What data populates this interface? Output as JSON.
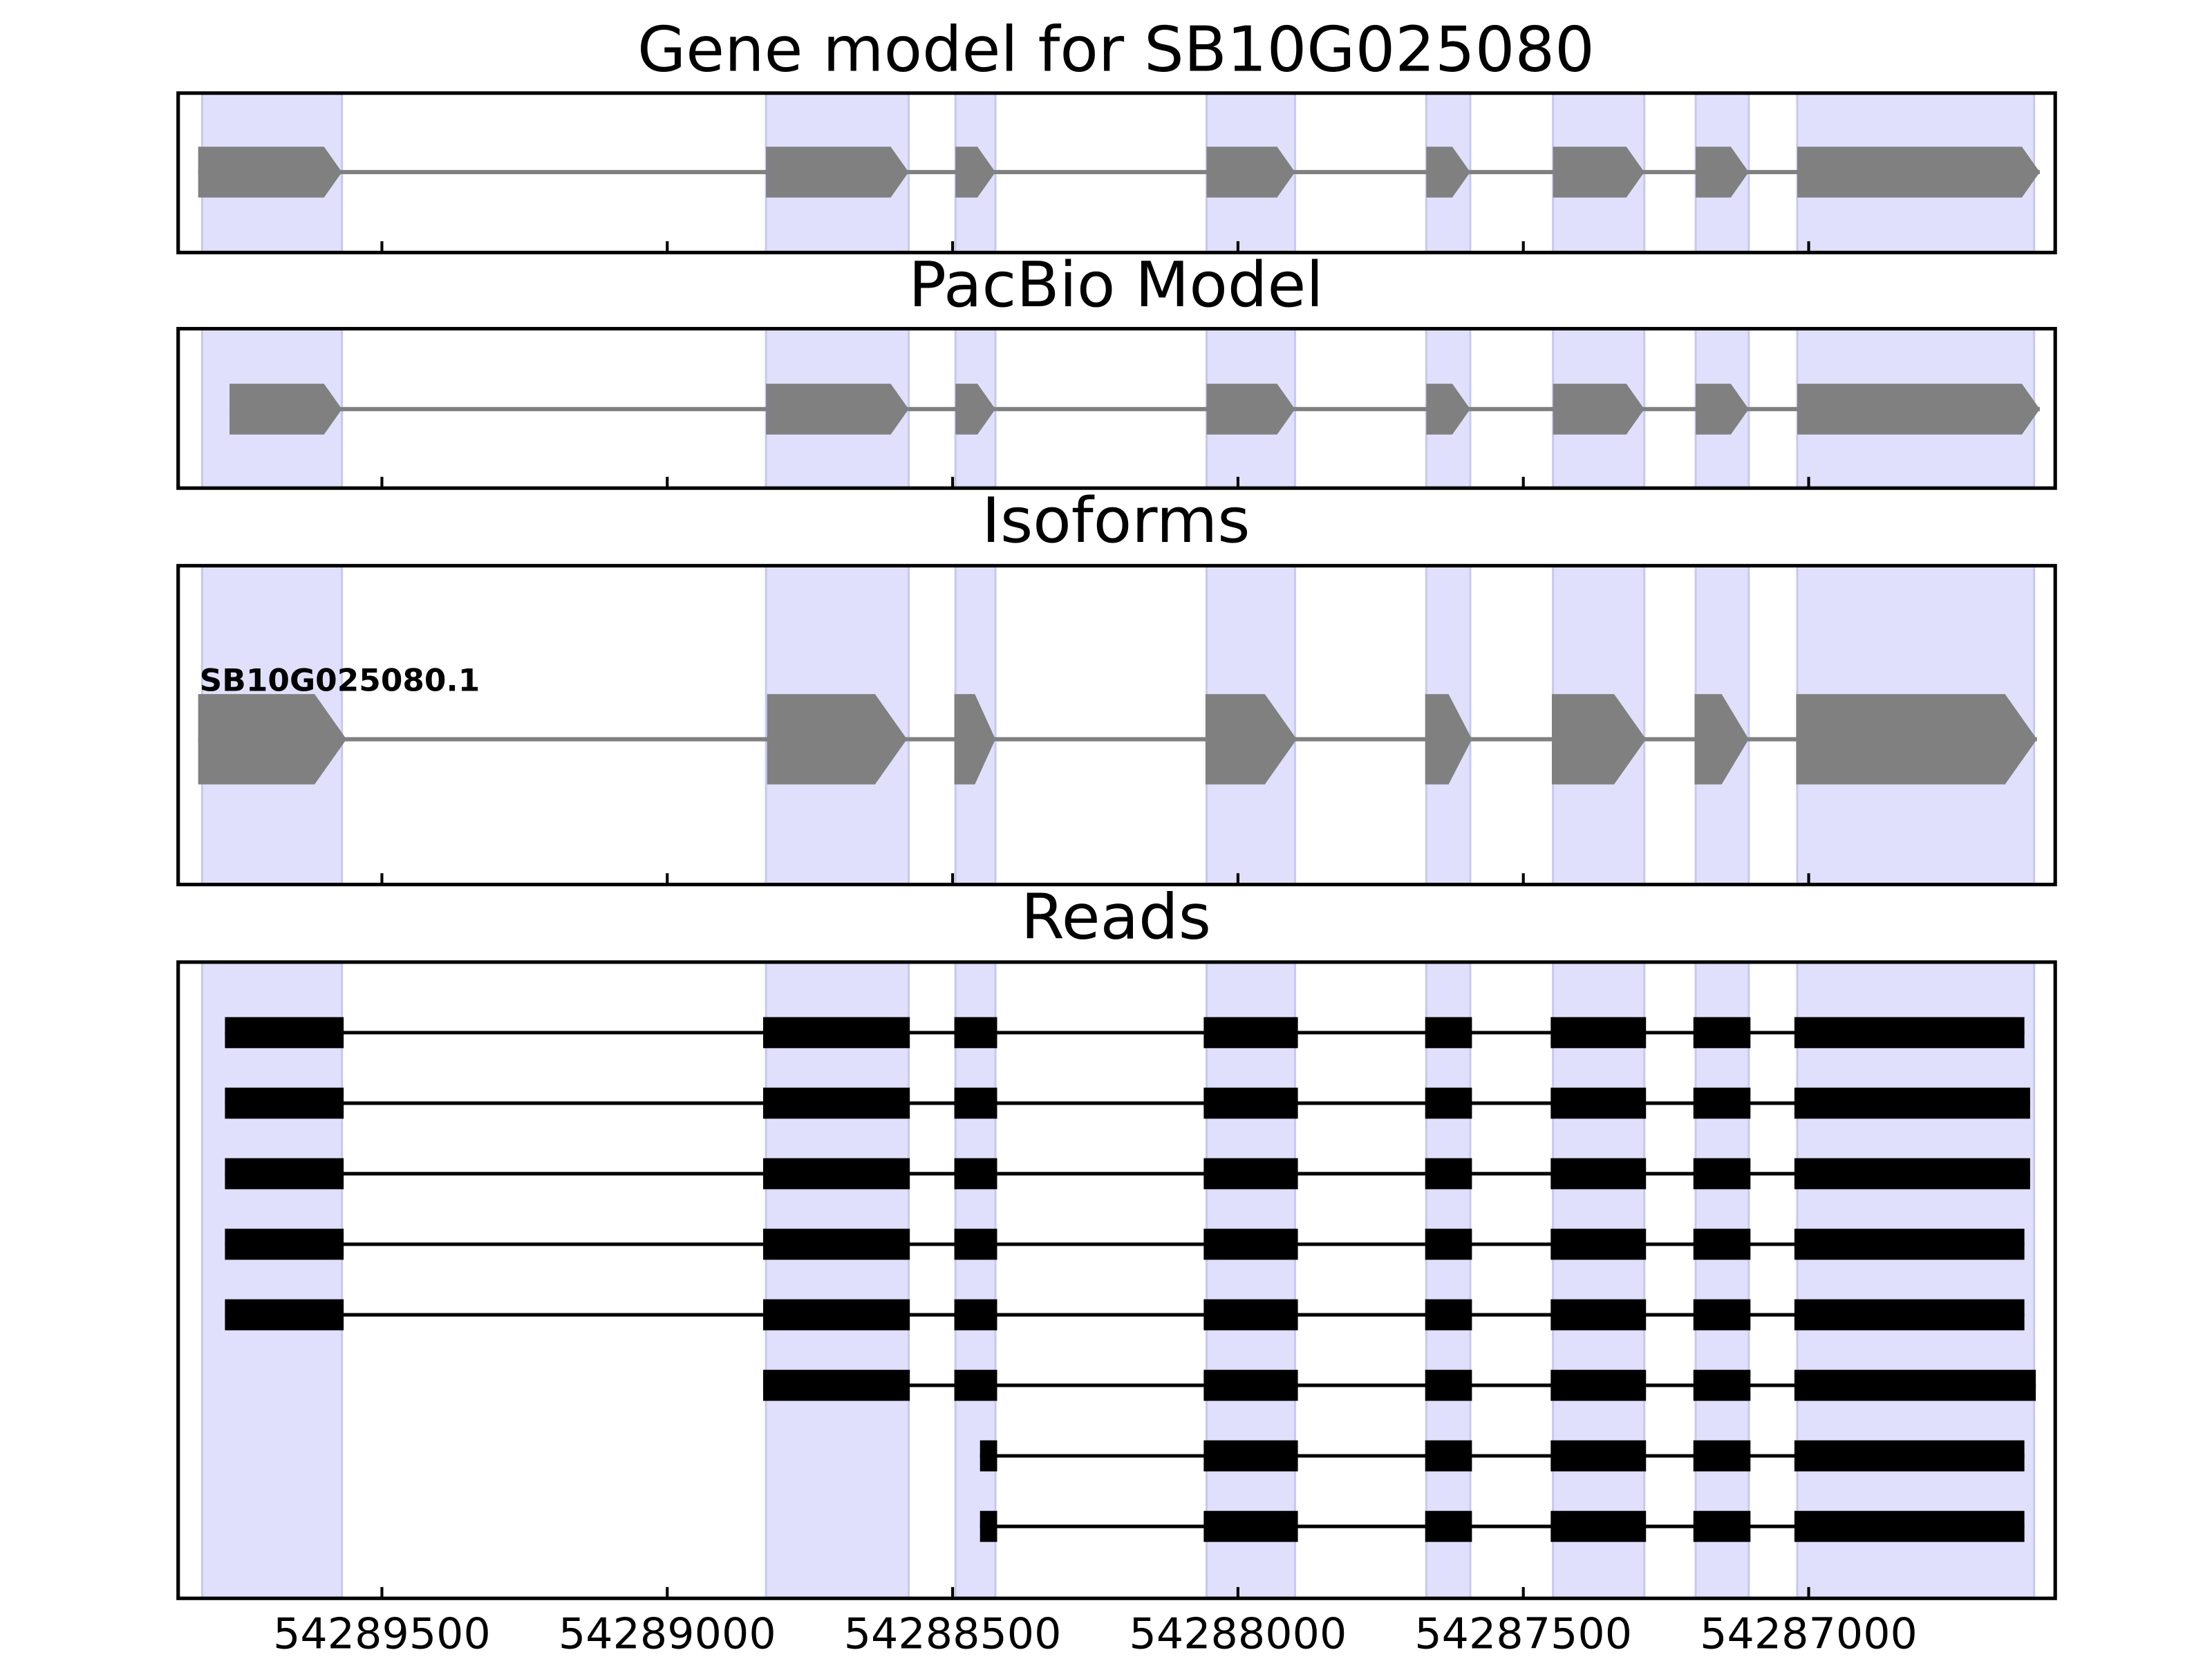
{
  "chart_data": [
    {
      "type": "gene",
      "title": "Gene model for SB10G025080",
      "color": "#808080",
      "highlight_color": "#e0e0fc",
      "highlight": [
        [
          54289815,
          54289570
        ],
        [
          54288827,
          54288577
        ],
        [
          54288495,
          54288425
        ],
        [
          54288055,
          54287900
        ],
        [
          54287670,
          54287593
        ],
        [
          54287448,
          54287288
        ],
        [
          54287198,
          54287105
        ],
        [
          54287020,
          54286605
        ]
      ],
      "tracks": [
        {
          "exons": [
            [
              54289822,
              54289570
            ],
            [
              54288827,
              54288577
            ],
            [
              54288495,
              54288425
            ],
            [
              54288055,
              54287900
            ],
            [
              54287670,
              54287593
            ],
            [
              54287448,
              54287288
            ],
            [
              54287198,
              54287105
            ],
            [
              54287020,
              54286595
            ]
          ]
        }
      ]
    },
    {
      "type": "gene",
      "title": "PacBio Model",
      "color": "#808080",
      "tracks": [
        {
          "exons": [
            [
              54289767,
              54289570
            ],
            [
              54288827,
              54288577
            ],
            [
              54288495,
              54288425
            ],
            [
              54288055,
              54287900
            ],
            [
              54287670,
              54287593
            ],
            [
              54287448,
              54287288
            ],
            [
              54287198,
              54287105
            ],
            [
              54287020,
              54286595
            ]
          ]
        }
      ]
    },
    {
      "type": "gene",
      "title": "Isoforms",
      "color": "#808080",
      "tracks": [
        {
          "name": "SB10G025080.1",
          "exons": [
            [
              54289822,
              54289562
            ],
            [
              54288825,
              54288580
            ],
            [
              54288497,
              54288425
            ],
            [
              54288057,
              54287897
            ],
            [
              54287672,
              54287590
            ],
            [
              54287450,
              54287285
            ],
            [
              54287200,
              54287105
            ],
            [
              54287022,
              54286600
            ]
          ]
        }
      ]
    },
    {
      "type": "reads",
      "title": "Reads",
      "color": "#000000",
      "xlim": [
        54289857,
        54286568
      ],
      "xticks": [
        54289500,
        54289000,
        54288500,
        54288000,
        54287500,
        54287000
      ],
      "tracks": [
        {
          "exons": [
            [
              54289775,
              54289567
            ],
            [
              54288832,
              54288575
            ],
            [
              54288497,
              54288422
            ],
            [
              54288060,
              54287895
            ],
            [
              54287672,
              54287590
            ],
            [
              54287452,
              54287285
            ],
            [
              54287202,
              54287102
            ],
            [
              54287025,
              54286622
            ]
          ]
        },
        {
          "exons": [
            [
              54289775,
              54289567
            ],
            [
              54288832,
              54288575
            ],
            [
              54288497,
              54288422
            ],
            [
              54288060,
              54287895
            ],
            [
              54287672,
              54287590
            ],
            [
              54287452,
              54287285
            ],
            [
              54287202,
              54287102
            ],
            [
              54287025,
              54286612
            ]
          ]
        },
        {
          "exons": [
            [
              54289775,
              54289567
            ],
            [
              54288832,
              54288575
            ],
            [
              54288497,
              54288422
            ],
            [
              54288060,
              54287895
            ],
            [
              54287672,
              54287590
            ],
            [
              54287452,
              54287285
            ],
            [
              54287202,
              54287102
            ],
            [
              54287025,
              54286612
            ]
          ]
        },
        {
          "exons": [
            [
              54289775,
              54289567
            ],
            [
              54288832,
              54288575
            ],
            [
              54288497,
              54288422
            ],
            [
              54288060,
              54287895
            ],
            [
              54287672,
              54287590
            ],
            [
              54287452,
              54287285
            ],
            [
              54287202,
              54287102
            ],
            [
              54287025,
              54286622
            ]
          ]
        },
        {
          "exons": [
            [
              54289775,
              54289567
            ],
            [
              54288832,
              54288575
            ],
            [
              54288497,
              54288422
            ],
            [
              54288060,
              54287895
            ],
            [
              54287672,
              54287590
            ],
            [
              54287452,
              54287285
            ],
            [
              54287202,
              54287102
            ],
            [
              54287025,
              54286622
            ]
          ]
        },
        {
          "exons": [
            [
              54288832,
              54288575
            ],
            [
              54288497,
              54288422
            ],
            [
              54288060,
              54287895
            ],
            [
              54287672,
              54287590
            ],
            [
              54287452,
              54287285
            ],
            [
              54287202,
              54287102
            ],
            [
              54287025,
              54286602
            ]
          ]
        },
        {
          "exons": [
            [
              54288452,
              54288422
            ],
            [
              54288060,
              54287895
            ],
            [
              54287672,
              54287590
            ],
            [
              54287452,
              54287285
            ],
            [
              54287202,
              54287102
            ],
            [
              54287025,
              54286622
            ]
          ]
        },
        {
          "exons": [
            [
              54288452,
              54288422
            ],
            [
              54288060,
              54287895
            ],
            [
              54287672,
              54287590
            ],
            [
              54287452,
              54287285
            ],
            [
              54287202,
              54287102
            ],
            [
              54287025,
              54286622
            ]
          ]
        }
      ]
    }
  ]
}
